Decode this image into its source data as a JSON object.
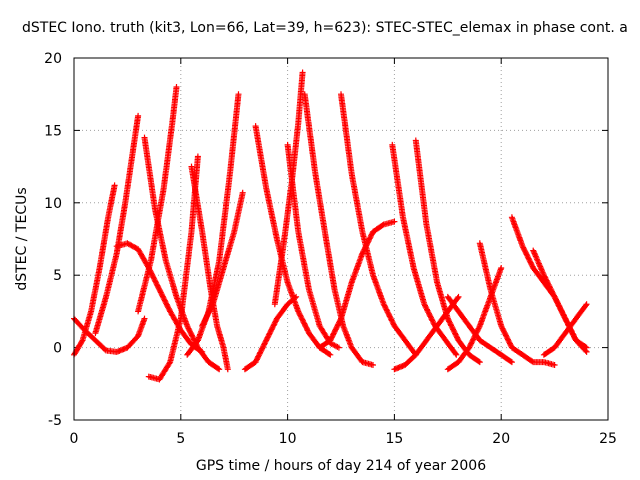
{
  "chart_data": {
    "type": "scatter",
    "title": "dSTEC Iono. truth (kit3, Lon=66, Lat=39, h=623): STEC-STEC_elemax in phase cont. a",
    "xlabel": "GPS time / hours of day 214 of year 2006",
    "ylabel": "dSTEC  / TECUs",
    "xlim": [
      0,
      25
    ],
    "ylim": [
      -5,
      20
    ],
    "xticks": [
      0,
      5,
      10,
      15,
      20,
      25
    ],
    "yticks": [
      -5,
      0,
      5,
      10,
      15,
      20
    ],
    "xtick_labels": [
      "0",
      "5",
      "10",
      "15",
      "20",
      "25"
    ],
    "ytick_labels": [
      "-5",
      "0",
      "5",
      "10",
      "15",
      "20"
    ],
    "grid": true,
    "marker": "+",
    "color": "#ff0000",
    "series": [
      {
        "x": [
          0.0,
          0.4,
          0.8,
          1.2,
          1.6,
          1.9
        ],
        "y": [
          -0.5,
          0.5,
          2.5,
          5.5,
          9.0,
          11.2
        ]
      },
      {
        "x": [
          1.0,
          1.5,
          2.0,
          2.4,
          2.8,
          3.0
        ],
        "y": [
          1.0,
          3.5,
          6.5,
          10.0,
          14.0,
          16.0
        ]
      },
      {
        "x": [
          2.0,
          2.5,
          3.0,
          3.5,
          4.0,
          4.5,
          5.0,
          5.5,
          6.0
        ],
        "y": [
          7.0,
          7.2,
          6.8,
          5.5,
          4.0,
          2.5,
          1.2,
          0.2,
          -0.3
        ]
      },
      {
        "x": [
          3.3,
          3.8,
          4.3,
          4.8,
          5.3,
          5.8,
          6.3,
          6.8
        ],
        "y": [
          14.5,
          9.5,
          6.0,
          3.5,
          1.5,
          0.0,
          -1.0,
          -1.5
        ]
      },
      {
        "x": [
          3.0,
          3.6,
          4.2,
          4.6,
          4.8
        ],
        "y": [
          2.5,
          6.0,
          11.0,
          15.5,
          18.0
        ]
      },
      {
        "x": [
          0.0,
          0.5,
          1.0,
          1.5,
          2.0,
          2.5,
          3.0,
          3.3
        ],
        "y": [
          2.0,
          1.2,
          0.5,
          -0.2,
          -0.3,
          0.0,
          0.8,
          2.0
        ]
      },
      {
        "x": [
          3.5,
          4.0,
          4.5,
          5.0,
          5.5,
          5.8
        ],
        "y": [
          -2.0,
          -2.2,
          -1.0,
          2.0,
          8.0,
          13.2
        ]
      },
      {
        "x": [
          5.3,
          5.8,
          6.3,
          6.8,
          7.3,
          7.7
        ],
        "y": [
          -0.5,
          0.5,
          2.5,
          6.0,
          12.0,
          17.5
        ]
      },
      {
        "x": [
          5.5,
          6.0,
          6.4,
          6.7,
          7.0,
          7.2
        ],
        "y": [
          12.5,
          8.0,
          4.0,
          1.5,
          0.0,
          -1.5
        ]
      },
      {
        "x": [
          6.0,
          6.5,
          7.0,
          7.5,
          7.9
        ],
        "y": [
          1.5,
          3.0,
          5.5,
          8.0,
          10.7
        ]
      },
      {
        "x": [
          8.0,
          8.5,
          9.0,
          9.5,
          10.0,
          10.4
        ],
        "y": [
          -1.5,
          -1.0,
          0.5,
          2.0,
          3.0,
          3.5
        ]
      },
      {
        "x": [
          8.5,
          9.0,
          9.5,
          10.0,
          10.5,
          11.0,
          11.5,
          12.0
        ],
        "y": [
          15.3,
          11.0,
          7.5,
          4.5,
          2.5,
          1.0,
          0.0,
          -0.5
        ]
      },
      {
        "x": [
          9.4,
          9.8,
          10.2,
          10.5,
          10.7
        ],
        "y": [
          3.0,
          7.0,
          11.5,
          15.5,
          19.0
        ]
      },
      {
        "x": [
          10.0,
          10.5,
          11.0,
          11.5,
          12.0,
          12.4
        ],
        "y": [
          14.0,
          8.0,
          4.0,
          1.5,
          0.3,
          0.0
        ]
      },
      {
        "x": [
          10.8,
          11.3,
          11.8,
          12.2,
          12.6,
          13.0,
          13.5,
          14.0
        ],
        "y": [
          17.5,
          12.0,
          7.5,
          4.0,
          1.5,
          0.0,
          -1.0,
          -1.2
        ]
      },
      {
        "x": [
          11.5,
          12.0,
          12.5,
          13.0,
          13.5,
          14.0,
          14.5,
          15.0
        ],
        "y": [
          0.0,
          0.5,
          2.0,
          4.5,
          6.5,
          8.0,
          8.5,
          8.7
        ]
      },
      {
        "x": [
          12.5,
          13.0,
          13.5,
          14.0,
          14.5,
          15.0,
          15.5,
          16.0
        ],
        "y": [
          17.5,
          12.0,
          8.0,
          5.0,
          3.0,
          1.5,
          0.5,
          -0.5
        ]
      },
      {
        "x": [
          14.9,
          15.4,
          15.9,
          16.4,
          16.9,
          17.4,
          17.9
        ],
        "y": [
          14.0,
          9.0,
          5.5,
          3.0,
          1.5,
          0.5,
          -0.5
        ]
      },
      {
        "x": [
          16.0,
          16.5,
          17.0,
          17.5,
          18.0,
          18.5,
          19.0
        ],
        "y": [
          14.3,
          8.5,
          4.5,
          2.0,
          0.5,
          -0.5,
          -1.0
        ]
      },
      {
        "x": [
          15.0,
          15.5,
          16.0,
          16.5,
          17.0,
          17.5,
          18.0
        ],
        "y": [
          -1.5,
          -1.2,
          -0.5,
          0.5,
          1.5,
          2.5,
          3.5
        ]
      },
      {
        "x": [
          17.5,
          18.0,
          18.5,
          19.0,
          19.5,
          20.0,
          20.5
        ],
        "y": [
          3.5,
          2.5,
          1.5,
          0.5,
          0.0,
          -0.5,
          -1.0
        ]
      },
      {
        "x": [
          17.5,
          18.0,
          18.5,
          19.0,
          19.5,
          20.0
        ],
        "y": [
          -1.5,
          -1.0,
          0.0,
          1.5,
          3.5,
          5.5
        ]
      },
      {
        "x": [
          19.0,
          19.5,
          20.0,
          20.5,
          21.0,
          21.5,
          22.0,
          22.5
        ],
        "y": [
          7.2,
          4.0,
          1.5,
          0.0,
          -0.5,
          -1.0,
          -1.0,
          -1.2
        ]
      },
      {
        "x": [
          20.5,
          21.0,
          21.5,
          22.0,
          22.5,
          23.0,
          23.5,
          24.0
        ],
        "y": [
          9.0,
          7.0,
          5.5,
          4.5,
          3.5,
          2.0,
          0.5,
          0.0
        ]
      },
      {
        "x": [
          21.5,
          22.0,
          22.5,
          23.0,
          23.5,
          24.0
        ],
        "y": [
          6.7,
          5.0,
          3.5,
          2.0,
          0.5,
          -0.3
        ]
      },
      {
        "x": [
          22.0,
          22.5,
          23.0,
          23.5,
          24.0
        ],
        "y": [
          -0.5,
          0.0,
          1.0,
          2.0,
          3.0
        ]
      }
    ]
  }
}
